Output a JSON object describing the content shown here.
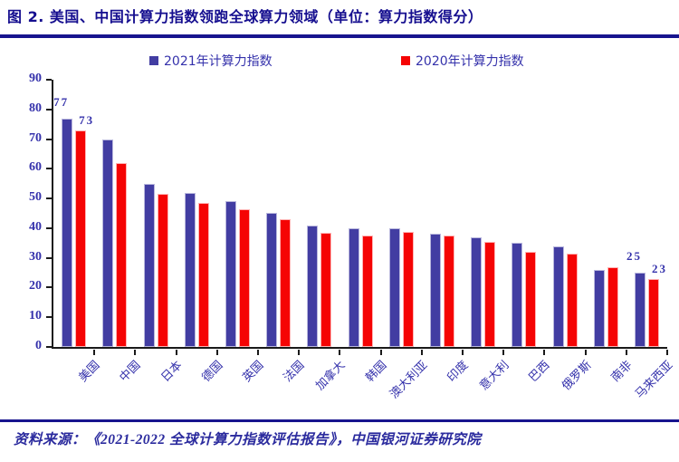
{
  "title": "图 2. 美国、中国计算力指数领跑全球算力领域（单位：算力指数得分）",
  "source": "资料来源：《2021-2022 全球计算力指数评估报告》，中国银河证券研究院",
  "colors": {
    "accent_navy": "#17148e",
    "text_indigo": "#3431ab",
    "bar_2021": "#423da2",
    "bar_2020": "#f50404",
    "axis": "#1a1a1a"
  },
  "chart_data": {
    "type": "bar",
    "title": "美国、中国计算力指数领跑全球算力领域",
    "unit": "算力指数得分",
    "categories": [
      "美国",
      "中国",
      "日本",
      "德国",
      "英国",
      "法国",
      "加拿大",
      "韩国",
      "澳大利亚",
      "印度",
      "意大利",
      "巴西",
      "俄罗斯",
      "南非",
      "马来西亚"
    ],
    "series": [
      {
        "name": "2021年计算力指数",
        "color": "#423da2",
        "values": [
          77,
          70,
          55,
          52,
          49,
          45,
          41,
          40,
          40,
          38,
          37,
          35,
          34,
          26,
          25
        ]
      },
      {
        "name": "2020年计算力指数",
        "color": "#f50404",
        "values": [
          73,
          62,
          51.6,
          48.4,
          46.5,
          43,
          38.5,
          37.5,
          38.7,
          37.4,
          35.4,
          32,
          31.4,
          26.8,
          23
        ]
      }
    ],
    "data_labels": {
      "labeled_category_indices": [
        0,
        14
      ],
      "labels": [
        [
          "77",
          "73"
        ],
        [
          "25",
          "23"
        ]
      ]
    },
    "ylim": [
      0,
      90
    ],
    "ytick_step": 10,
    "y_ticks": [
      "90",
      "80",
      "70",
      "60",
      "50",
      "40",
      "30",
      "20",
      "10",
      "0"
    ],
    "grid": false,
    "legend_position": "top",
    "x_label_rotation_deg": 45
  }
}
